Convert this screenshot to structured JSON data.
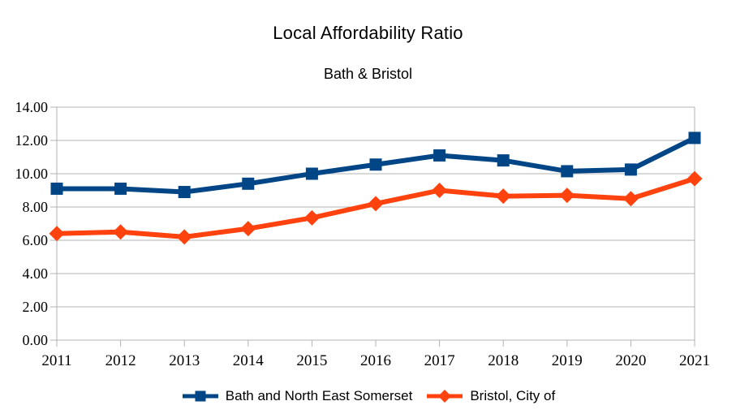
{
  "chart_data": {
    "type": "line",
    "title": "Local Affordability Ratio",
    "subtitle": "Bath & Bristol",
    "categories": [
      "2011",
      "2012",
      "2013",
      "2014",
      "2015",
      "2016",
      "2017",
      "2018",
      "2019",
      "2020",
      "2021"
    ],
    "series": [
      {
        "name": "Bath and North East Somerset",
        "color": "#004586",
        "marker": "square",
        "values": [
          9.1,
          9.1,
          8.9,
          9.4,
          10.0,
          10.55,
          11.1,
          10.8,
          10.15,
          10.25,
          12.15
        ]
      },
      {
        "name": "Bristol, City of",
        "color": "#FF420E",
        "marker": "diamond",
        "values": [
          6.4,
          6.5,
          6.2,
          6.7,
          7.35,
          8.2,
          9.0,
          8.65,
          8.7,
          8.5,
          9.7
        ]
      }
    ],
    "xlabel": "",
    "ylabel": "",
    "ylim": [
      0,
      14
    ],
    "ytick_step": 2,
    "ytick_labels": [
      "0.00",
      "2.00",
      "4.00",
      "6.00",
      "8.00",
      "10.00",
      "12.00",
      "14.00"
    ],
    "grid": "horizontal",
    "legend_position": "bottom",
    "axis_color": "#b3b3b3",
    "text_color": "#000000",
    "background": "#ffffff"
  }
}
